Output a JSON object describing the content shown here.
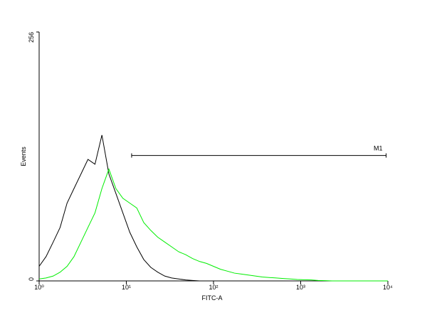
{
  "chart_data": {
    "type": "line",
    "x_label": "FITC-A",
    "y_label": "Events",
    "log_x": true,
    "xlim": [
      1,
      10000
    ],
    "xticks": [
      {
        "value": 1,
        "label": "10⁰"
      },
      {
        "value": 10,
        "label": "10¹"
      },
      {
        "value": 100,
        "label": "10²"
      },
      {
        "value": 1000,
        "label": "10³"
      },
      {
        "value": 10000,
        "label": "10⁴"
      }
    ],
    "ylim": [
      0,
      256
    ],
    "yticks": [
      0,
      256
    ],
    "x": [
      1,
      1.2,
      1.45,
      1.74,
      2.09,
      2.51,
      3.02,
      3.63,
      4.37,
      5.25,
      6.31,
      7.59,
      9.12,
      10.96,
      13.18,
      15.85,
      19.05,
      22.91,
      27.54,
      33.11,
      39.81,
      47.86,
      57.54,
      69.18,
      83.18,
      100,
      120.2,
      144.5,
      173.8,
      208.9,
      251.2,
      302,
      363.1,
      436.5,
      524.8,
      631,
      758.6,
      912,
      1096,
      1318,
      1585,
      1905,
      2291,
      2754,
      3311,
      3981,
      4786,
      5754,
      6918,
      8318,
      10000
    ],
    "series": [
      {
        "color": "#000000",
        "values": [
          15,
          25,
          40,
          55,
          80,
          95,
          110,
          125,
          120,
          150,
          110,
          90,
          70,
          50,
          35,
          22,
          14,
          9,
          5,
          3,
          2,
          1,
          0.5,
          0,
          0,
          0,
          0,
          0,
          0,
          0,
          0,
          0,
          0,
          0,
          0,
          0,
          0,
          0,
          0,
          0,
          0,
          0,
          0,
          0,
          0,
          0,
          0,
          0,
          0,
          0,
          0
        ]
      },
      {
        "color": "#00ee00",
        "values": [
          2,
          3,
          5,
          9,
          15,
          25,
          40,
          55,
          70,
          95,
          115,
          95,
          85,
          80,
          75,
          60,
          52,
          45,
          40,
          35,
          30,
          27,
          23,
          20,
          18,
          15,
          12,
          10,
          8,
          7,
          6,
          5,
          4,
          3.5,
          3,
          2.5,
          2,
          1.5,
          1.2,
          1,
          0.5,
          0.3,
          0,
          0,
          0,
          0,
          0,
          0,
          0,
          0,
          0
        ]
      }
    ],
    "marker": {
      "label": "M1",
      "range": [
        11.5,
        9550
      ],
      "y": 129
    }
  }
}
